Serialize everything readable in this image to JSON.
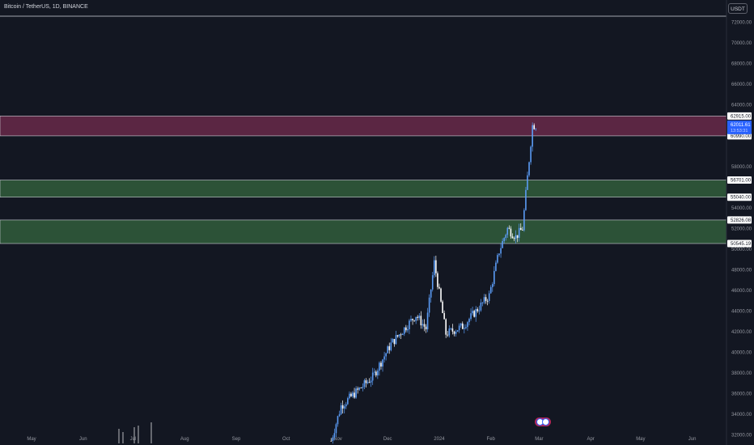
{
  "header": {
    "title": "Bitcoin / TetherUS, 1D, BINANCE"
  },
  "currency_button": {
    "label": "USDT"
  },
  "colors": {
    "background": "#131722",
    "candle_up": "#5b9cf6",
    "candle_down": "#ffffff",
    "zone_resistance": "#5b2643",
    "zone_support": "#2c5237",
    "last_price_label": "#2962ff"
  },
  "chart_data": {
    "type": "candlestick",
    "ylim": [
      31000,
      72600
    ],
    "yticks": [
      "72000.00",
      "70000.00",
      "68000.00",
      "66000.00",
      "64000.00",
      "58000.00",
      "54000.00",
      "52000.00",
      "50000.00",
      "48000.00",
      "46000.00",
      "44000.00",
      "42000.00",
      "40000.00",
      "38000.00",
      "36000.00",
      "34000.00",
      "32000.00"
    ],
    "months": [
      {
        "label": "May",
        "day": 0
      },
      {
        "label": "Jun",
        "day": 31
      },
      {
        "label": "Jul",
        "day": 61
      },
      {
        "label": "Aug",
        "day": 92
      },
      {
        "label": "Sep",
        "day": 123
      },
      {
        "label": "Oct",
        "day": 153
      },
      {
        "label": "Nov",
        "day": 184
      },
      {
        "label": "Dec",
        "day": 214
      },
      {
        "label": "2024",
        "day": 245
      },
      {
        "label": "Feb",
        "day": 276
      },
      {
        "label": "Mar",
        "day": 305
      },
      {
        "label": "Apr",
        "day": 336
      },
      {
        "label": "May",
        "day": 366
      },
      {
        "label": "Jun",
        "day": 397
      }
    ],
    "zones": [
      {
        "kind": "resistance",
        "from": 60990,
        "to": 62915
      },
      {
        "kind": "support",
        "from": 55040,
        "to": 56701
      },
      {
        "kind": "support",
        "from": 50545.19,
        "to": 52826.08
      }
    ],
    "top_line": 72600,
    "price_labels": [
      "62915.00",
      "60990.00",
      "56701.00",
      "55040.00",
      "52826.08",
      "50545.19"
    ],
    "last_price": {
      "price": "62011.61",
      "countdown": "13:53:31"
    },
    "path_days": [
      180,
      186,
      205,
      216,
      231,
      237,
      242,
      249,
      259,
      266,
      275,
      281,
      286,
      291,
      295,
      298,
      301
    ],
    "path_prices": [
      31400,
      34800,
      37600,
      40800,
      43600,
      42300,
      48700,
      41800,
      42500,
      43800,
      45500,
      49800,
      52000,
      51200,
      52000,
      57000,
      62000
    ],
    "candle_days_start": 180,
    "candle_days_end": 303
  }
}
